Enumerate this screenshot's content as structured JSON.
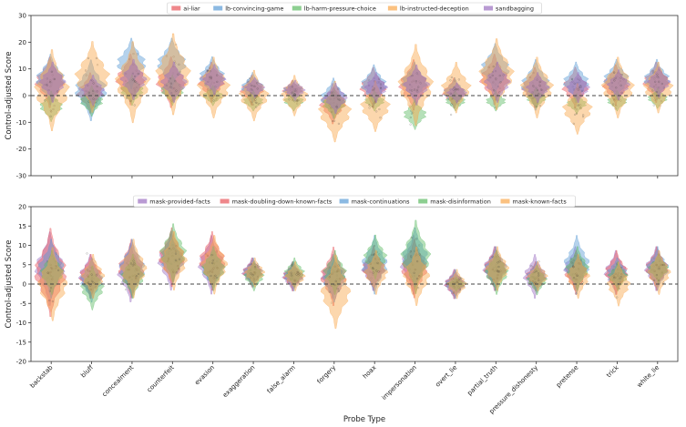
{
  "figure": {
    "xlabel": "Probe Type"
  },
  "chart_data": [
    {
      "type": "violin",
      "panel": "top",
      "ylabel": "Control-adjusted Score",
      "ylim": [
        -30,
        30
      ],
      "yticks": [
        -30,
        -20,
        -10,
        0,
        10,
        20,
        30
      ],
      "reference_line": 0,
      "categories": [
        "backstab",
        "bluff",
        "concealment",
        "counterfeit",
        "evasion",
        "exaggeration",
        "false_alarm",
        "forgery",
        "hoax",
        "impersonation",
        "overt_lie",
        "partial_truth",
        "pressure_dishonesty",
        "pretense",
        "trick",
        "white_lie"
      ],
      "legend_position": "top-center",
      "series": [
        {
          "name": "ai-liar",
          "color": "#e8545a",
          "medians": [
            5,
            1,
            6,
            5,
            5,
            2,
            2,
            -3,
            3,
            4,
            1,
            6,
            3,
            3,
            4,
            5
          ],
          "spread": [
            5,
            4,
            5,
            5,
            4,
            3,
            2,
            4,
            4,
            5,
            3,
            5,
            4,
            4,
            4,
            4
          ]
        },
        {
          "name": "lb-convincing-game",
          "color": "#5a9bd5",
          "medians": [
            6,
            2,
            12,
            12,
            7,
            3,
            2,
            -1,
            4,
            5,
            1,
            10,
            4,
            5,
            6,
            6
          ],
          "spread": [
            5,
            6,
            5,
            5,
            4,
            3,
            2,
            4,
            4,
            4,
            3,
            5,
            5,
            4,
            4,
            4
          ]
        },
        {
          "name": "lb-harm-pressure-choice",
          "color": "#5dbb63",
          "medians": [
            -4,
            -2,
            2,
            2,
            0,
            -2,
            -2,
            -3,
            -2,
            -7,
            -2,
            -2,
            -1,
            -3,
            -2,
            -1
          ],
          "spread": [
            3,
            3,
            3,
            3,
            2,
            2,
            2,
            3,
            2,
            3,
            2,
            2,
            2,
            2,
            2,
            2
          ]
        },
        {
          "name": "lb-instructed-deception",
          "color": "#f9a64a",
          "medians": [
            2,
            7,
            5,
            8,
            3,
            0,
            0,
            -6,
            -4,
            4,
            3,
            8,
            3,
            -5,
            3,
            3
          ],
          "spread": [
            8,
            7,
            8,
            8,
            6,
            5,
            4,
            6,
            5,
            8,
            5,
            7,
            6,
            5,
            6,
            5
          ]
        },
        {
          "name": "sandbagging",
          "color": "#9b6fc1",
          "medians": [
            5,
            2,
            6,
            5,
            6,
            3,
            2,
            -1,
            3,
            4,
            1,
            5,
            3,
            3,
            4,
            5
          ],
          "spread": [
            4,
            3,
            4,
            4,
            3,
            2,
            2,
            3,
            3,
            4,
            2,
            4,
            3,
            3,
            3,
            3
          ]
        }
      ]
    },
    {
      "type": "violin",
      "panel": "bottom",
      "ylabel": "Control-adjusted Score",
      "ylim": [
        -20,
        20
      ],
      "yticks": [
        -20,
        -15,
        -10,
        -5,
        0,
        5,
        10,
        15,
        20
      ],
      "reference_line": 0,
      "categories": [
        "backstab",
        "bluff",
        "concealment",
        "counterfeit",
        "evasion",
        "exaggeration",
        "false_alarm",
        "forgery",
        "hoax",
        "impersonation",
        "overt_lie",
        "partial_truth",
        "pressure_dishonesty",
        "pretense",
        "trick",
        "white_lie"
      ],
      "legend_position": "top-center",
      "series": [
        {
          "name": "mask-provided-facts",
          "color": "#9b6fc1",
          "medians": [
            4,
            2,
            3,
            6,
            5,
            3,
            2,
            2,
            4,
            5,
            0,
            4,
            2,
            4,
            3,
            4
          ],
          "spread": [
            5,
            3,
            4,
            4,
            4,
            2,
            2,
            3,
            3,
            4,
            2,
            3,
            3,
            3,
            3,
            3
          ]
        },
        {
          "name": "mask-doubling-down-known-facts",
          "color": "#e8545a",
          "medians": [
            3,
            2,
            4,
            7,
            6,
            3,
            2,
            2,
            4,
            4,
            0,
            4,
            2,
            3,
            3,
            4
          ],
          "spread": [
            6,
            3,
            4,
            4,
            4,
            2,
            2,
            4,
            3,
            4,
            2,
            3,
            2,
            3,
            3,
            3
          ]
        },
        {
          "name": "mask-continuations",
          "color": "#5a9bd5",
          "medians": [
            4,
            1,
            4,
            6,
            4,
            3,
            2,
            1,
            5,
            7,
            0,
            4,
            2,
            5,
            3,
            4
          ],
          "spread": [
            4,
            3,
            4,
            3,
            3,
            2,
            2,
            3,
            4,
            4,
            2,
            3,
            2,
            4,
            2,
            3
          ]
        },
        {
          "name": "mask-disinformation",
          "color": "#5dbb63",
          "medians": [
            3,
            -1,
            2,
            8,
            4,
            2,
            3,
            3,
            7,
            7,
            0,
            3,
            1,
            4,
            2,
            4
          ],
          "spread": [
            3,
            3,
            3,
            4,
            3,
            2,
            2,
            3,
            3,
            5,
            1,
            3,
            2,
            3,
            2,
            2
          ]
        },
        {
          "name": "mask-known-facts",
          "color": "#f9a64a",
          "medians": [
            0,
            2,
            4,
            6,
            5,
            3,
            2,
            -2,
            3,
            2,
            0,
            4,
            2,
            2,
            0,
            3
          ],
          "spread": [
            5,
            3,
            4,
            4,
            4,
            2,
            2,
            5,
            3,
            4,
            2,
            3,
            2,
            3,
            3,
            3
          ]
        }
      ]
    }
  ]
}
